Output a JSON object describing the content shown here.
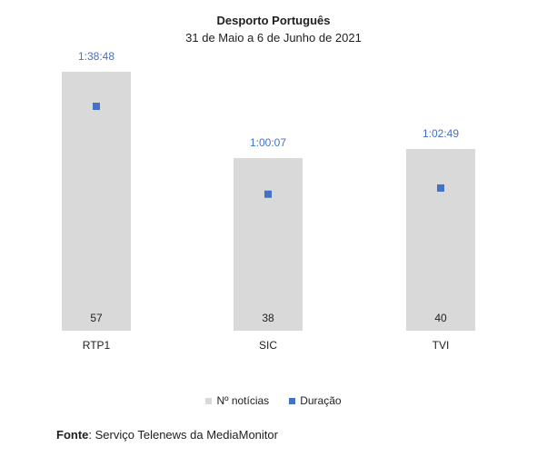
{
  "chart_data": {
    "type": "bar",
    "title": "Desporto Português",
    "subtitle": "31 de Maio a 6 de Junho de 2021",
    "categories": [
      "RTP1",
      "SIC",
      "TVI"
    ],
    "series": [
      {
        "name": "Nº notícias",
        "values": [
          57,
          38,
          40
        ],
        "labels": [
          "57",
          "38",
          "40"
        ],
        "color": "#d9d9d9"
      },
      {
        "name": "Duração",
        "type": "scatter",
        "values_seconds": [
          5928,
          3607,
          3769
        ],
        "labels": [
          "1:38:48",
          "1:00:07",
          "1:02:49"
        ],
        "color": "#4472c4"
      }
    ],
    "bar_axis_range": [
      0,
      60
    ],
    "duration_axis_range": [
      0,
      7200
    ],
    "grid": false,
    "legend_position": "bottom"
  },
  "source": {
    "label": "Fonte",
    "text": ": Serviço Telenews da MediaMonitor"
  }
}
